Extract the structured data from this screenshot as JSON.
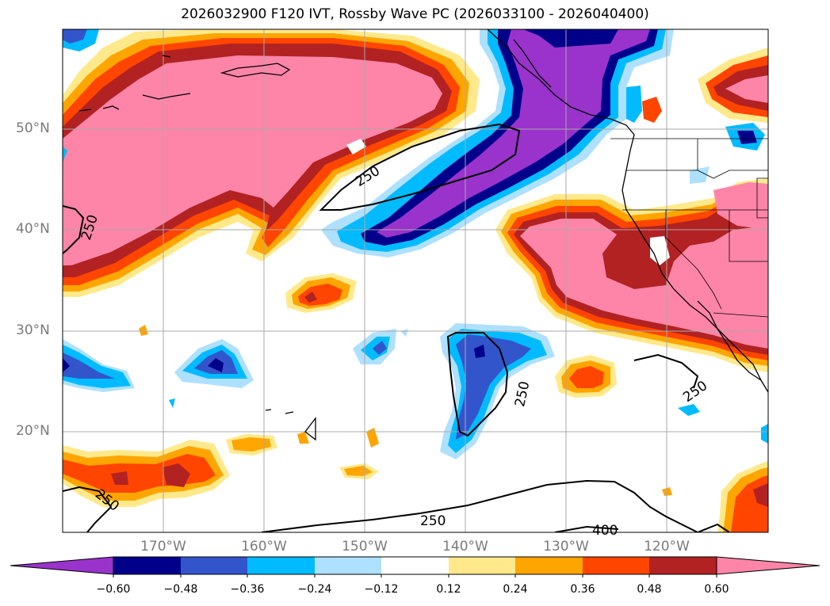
{
  "title": "2026032900 F120 IVT, Rossby Wave PC (2026033100 - 2026040400)",
  "lat_labels": [
    "50°N",
    "40°N",
    "30°N",
    "20°N"
  ],
  "lon_labels": [
    "170°W",
    "160°W",
    "150°W",
    "140°W",
    "130°W",
    "120°W"
  ],
  "contour_labels": [
    "250",
    "250",
    "250",
    "250",
    "250",
    "250",
    "400"
  ],
  "colorbar": {
    "colors": [
      "#9933cc",
      "#00008b",
      "#3355cc",
      "#00bbff",
      "#aee0ff",
      "#ffffff",
      "#ffe98a",
      "#ffa500",
      "#ff4500",
      "#b22222",
      "#ff85a8"
    ],
    "ticks": [
      "−0.60",
      "−0.48",
      "−0.36",
      "−0.24",
      "−0.12",
      "0.12",
      "0.24",
      "0.36",
      "0.48",
      "0.60"
    ]
  },
  "colors": {
    "neg1": "#9933cc",
    "neg2": "#00008b",
    "neg3": "#3355cc",
    "neg4": "#00bbff",
    "neg5": "#aee0ff",
    "pos1": "#ffe98a",
    "pos2": "#ffa500",
    "pos3": "#ff4500",
    "pos4": "#b22222",
    "pos5": "#ff85a8"
  }
}
